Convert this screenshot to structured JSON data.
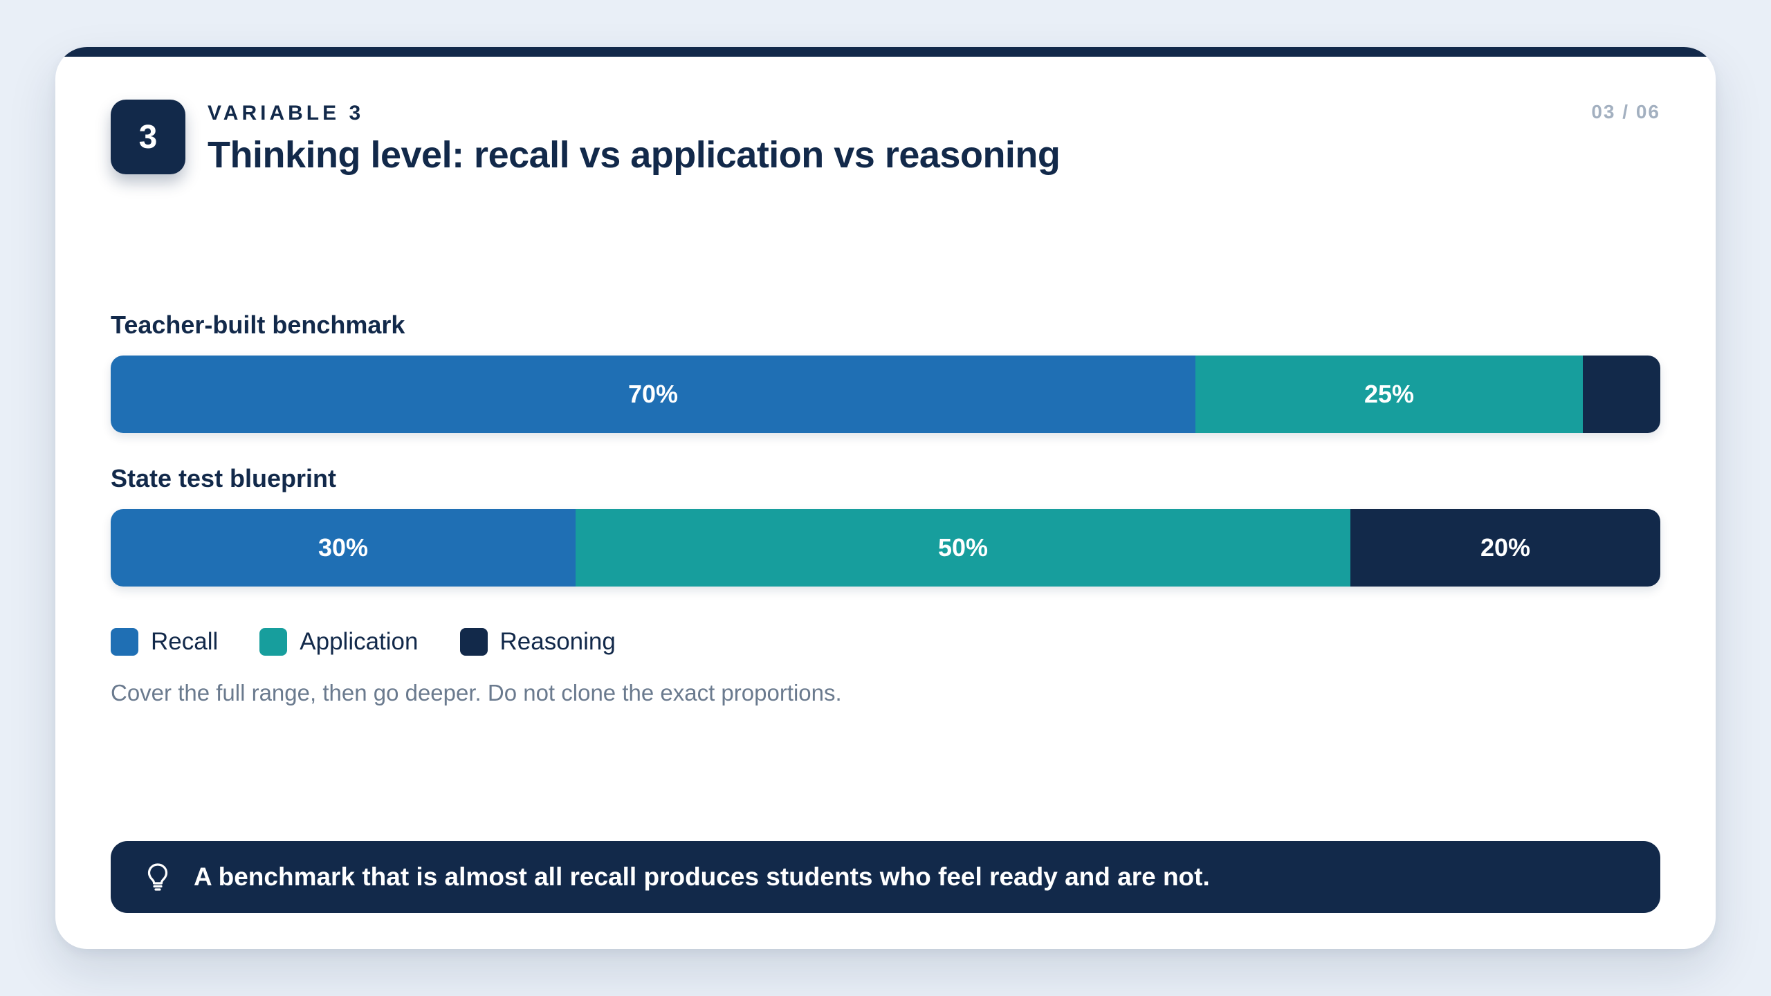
{
  "header": {
    "badge": "3",
    "eyebrow": "VARIABLE 3",
    "title": "Thinking level: recall vs application vs reasoning",
    "page_counter": "03 / 06"
  },
  "colors": {
    "recall": "#1f6fb4",
    "application": "#179e9d",
    "reasoning": "#12294a"
  },
  "chart_data": {
    "type": "bar",
    "orientation": "horizontal",
    "stacked": true,
    "unit": "%",
    "categories": [
      "Teacher-built benchmark",
      "State test blueprint"
    ],
    "series": [
      {
        "name": "Recall",
        "values": [
          70,
          30
        ],
        "labels": [
          "70%",
          "30%"
        ],
        "color": "#1f6fb4"
      },
      {
        "name": "Application",
        "values": [
          25,
          50
        ],
        "labels": [
          "25%",
          "50%"
        ],
        "color": "#179e9d"
      },
      {
        "name": "Reasoning",
        "values": [
          5,
          20
        ],
        "labels": [
          "",
          "20%"
        ],
        "color": "#12294a"
      }
    ],
    "legend_position": "bottom-left"
  },
  "note": "Cover the full range, then go deeper. Do not clone the exact proportions.",
  "callout": {
    "icon": "lightbulb-icon",
    "text": "A benchmark that is almost all recall produces students who feel ready and are not."
  }
}
